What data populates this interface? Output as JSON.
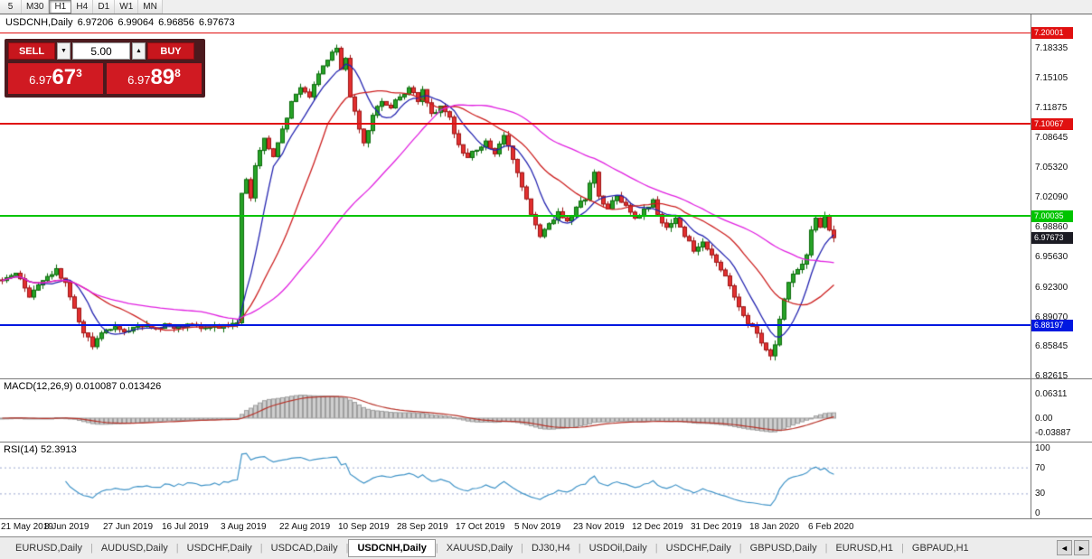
{
  "toolbar": {
    "timeframes": [
      {
        "label": "5",
        "active": false
      },
      {
        "label": "M30",
        "active": false
      },
      {
        "label": "H1",
        "active": true
      },
      {
        "label": "H4",
        "active": false
      },
      {
        "label": "D1",
        "active": false
      },
      {
        "label": "W1",
        "active": false
      },
      {
        "label": "MN",
        "active": false
      }
    ]
  },
  "chart_info": {
    "symbol": "USDCNH,Daily",
    "open": "6.97206",
    "high": "6.99064",
    "low": "6.96856",
    "close": "6.97673"
  },
  "trade_panel": {
    "sell_label": "SELL",
    "buy_label": "BUY",
    "volume": "5.00",
    "spin_up": "▲",
    "spin_down": "▼",
    "bid": {
      "prefix": "6.97",
      "big": "67",
      "sup": "3"
    },
    "ask": {
      "prefix": "6.97",
      "big": "89",
      "sup": "8"
    }
  },
  "price_axis": {
    "labels": [
      "7.18335",
      "7.15105",
      "7.11875",
      "7.08645",
      "7.05320",
      "7.02090",
      "6.98860",
      "6.95630",
      "6.92300",
      "6.89070",
      "6.85845",
      "6.82615"
    ]
  },
  "hlines": [
    {
      "value": 7.20001,
      "label": "7.20001",
      "color": "#e01010",
      "width": 1
    },
    {
      "value": 7.10067,
      "label": "7.10067",
      "color": "#e01010",
      "width": 2
    },
    {
      "value": 7.00035,
      "label": "7.00035",
      "color": "#00c400",
      "width": 2
    },
    {
      "value": 6.88197,
      "label": "6.88197",
      "color": "#0018e0",
      "width": 2
    }
  ],
  "current_price_tag": {
    "value": 6.97673,
    "label": "6.97673",
    "color": "#1c1c24"
  },
  "macd_panel": {
    "label": "MACD(12,26,9) 0.010087 0.013426",
    "axis": [
      {
        "value": 0.06311,
        "label": "0.06311"
      },
      {
        "value": 0,
        "label": "0.00"
      },
      {
        "value": -0.03887,
        "label": "-0.03887"
      }
    ]
  },
  "rsi_panel": {
    "label": "RSI(14) 52.3913",
    "axis": [
      {
        "value": 100,
        "label": "100"
      },
      {
        "value": 70,
        "label": "70"
      },
      {
        "value": 30,
        "label": "30"
      },
      {
        "value": 0,
        "label": "0"
      }
    ],
    "levels": [
      70,
      30
    ]
  },
  "date_axis": [
    {
      "label": "21 May 2019",
      "idx": 2
    },
    {
      "label": "8 Jun 2019",
      "idx": 15
    },
    {
      "label": "27 Jun 2019",
      "idx": 28
    },
    {
      "label": "16 Jul 2019",
      "idx": 41
    },
    {
      "label": "3 Aug 2019",
      "idx": 54
    },
    {
      "label": "22 Aug 2019",
      "idx": 67
    },
    {
      "label": "10 Sep 2019",
      "idx": 80
    },
    {
      "label": "28 Sep 2019",
      "idx": 93
    },
    {
      "label": "17 Oct 2019",
      "idx": 106
    },
    {
      "label": "5 Nov 2019",
      "idx": 119
    },
    {
      "label": "23 Nov 2019",
      "idx": 132
    },
    {
      "label": "12 Dec 2019",
      "idx": 145
    },
    {
      "label": "31 Dec 2019",
      "idx": 158
    },
    {
      "label": "18 Jan 2020",
      "idx": 171
    },
    {
      "label": "6 Feb 2020",
      "idx": 184
    }
  ],
  "tabs": {
    "separator": "|",
    "scroll_left": "◄",
    "scroll_right": "►",
    "items": [
      {
        "label": "EURUSD,Daily",
        "active": false
      },
      {
        "label": "AUDUSD,Daily",
        "active": false
      },
      {
        "label": "USDCHF,Daily",
        "active": false
      },
      {
        "label": "USDCAD,Daily",
        "active": false
      },
      {
        "label": "USDCNH,Daily",
        "active": true
      },
      {
        "label": "XAUUSD,Daily",
        "active": false
      },
      {
        "label": "DJ30,H4",
        "active": false
      },
      {
        "label": "USDOil,Daily",
        "active": false
      },
      {
        "label": "USDCHF,Daily",
        "active": false
      },
      {
        "label": "GBPUSD,Daily",
        "active": false
      },
      {
        "label": "EURUSD,H1",
        "active": false
      },
      {
        "label": "GBPAUD,H1",
        "active": false
      }
    ]
  },
  "chart_data": {
    "type": "candlestick",
    "symbol": "USDCNH",
    "timeframe": "Daily",
    "candle_count": 185,
    "price_scale": {
      "top": 7.2198,
      "bottom": 6.8235
    },
    "up_color": "#27a327",
    "up_border": "#0b6b0b",
    "down_color": "#e33030",
    "down_border": "#9c1414",
    "noise_seed": 42,
    "close_noise": 0.0032,
    "wick_noise": 0.0052,
    "ma": [
      {
        "period": 8,
        "color": "#2424b0"
      },
      {
        "period": 20,
        "color": "#cc2020"
      },
      {
        "period": 45,
        "color": "#e020e0"
      }
    ],
    "macd": {
      "fast": 12,
      "slow": 26,
      "signal": 9,
      "hist_color": "#cfcfcf",
      "hist_border": "#9e9e9e",
      "signal_color": "#b73228"
    },
    "rsi": {
      "period": 14,
      "color": "#3f93c7",
      "level_color": "#9aa7cf"
    },
    "close_keyframes": [
      [
        0,
        6.93
      ],
      [
        3,
        6.938
      ],
      [
        6,
        6.912
      ],
      [
        9,
        6.93
      ],
      [
        12,
        6.943
      ],
      [
        14,
        6.928
      ],
      [
        16,
        6.9
      ],
      [
        18,
        6.873
      ],
      [
        20,
        6.858
      ],
      [
        22,
        6.873
      ],
      [
        25,
        6.88
      ],
      [
        28,
        6.875
      ],
      [
        31,
        6.88
      ],
      [
        34,
        6.878
      ],
      [
        37,
        6.882
      ],
      [
        40,
        6.879
      ],
      [
        43,
        6.881
      ],
      [
        46,
        6.879
      ],
      [
        49,
        6.882
      ],
      [
        52,
        6.884
      ],
      [
        53,
        7.025
      ],
      [
        54,
        7.04
      ],
      [
        55,
        7.02
      ],
      [
        56,
        7.055
      ],
      [
        58,
        7.085
      ],
      [
        60,
        7.065
      ],
      [
        62,
        7.095
      ],
      [
        64,
        7.125
      ],
      [
        66,
        7.14
      ],
      [
        68,
        7.13
      ],
      [
        70,
        7.155
      ],
      [
        72,
        7.17
      ],
      [
        74,
        7.183
      ],
      [
        75,
        7.16
      ],
      [
        76,
        7.172
      ],
      [
        77,
        7.13
      ],
      [
        79,
        7.095
      ],
      [
        80,
        7.08
      ],
      [
        82,
        7.11
      ],
      [
        84,
        7.125
      ],
      [
        86,
        7.118
      ],
      [
        88,
        7.13
      ],
      [
        90,
        7.14
      ],
      [
        92,
        7.125
      ],
      [
        93,
        7.138
      ],
      [
        95,
        7.112
      ],
      [
        97,
        7.12
      ],
      [
        99,
        7.108
      ],
      [
        101,
        7.078
      ],
      [
        103,
        7.064
      ],
      [
        105,
        7.072
      ],
      [
        107,
        7.082
      ],
      [
        109,
        7.068
      ],
      [
        111,
        7.088
      ],
      [
        113,
        7.062
      ],
      [
        115,
        7.032
      ],
      [
        117,
        7.002
      ],
      [
        119,
        6.978
      ],
      [
        121,
        6.992
      ],
      [
        123,
        7.005
      ],
      [
        125,
        6.995
      ],
      [
        127,
        7.01
      ],
      [
        129,
        7.018
      ],
      [
        131,
        7.048
      ],
      [
        132,
        7.022
      ],
      [
        134,
        7.008
      ],
      [
        136,
        7.022
      ],
      [
        138,
        7.012
      ],
      [
        140,
        6.998
      ],
      [
        142,
        7.008
      ],
      [
        144,
        7.018
      ],
      [
        145,
        7.002
      ],
      [
        147,
        6.988
      ],
      [
        149,
        6.998
      ],
      [
        151,
        6.978
      ],
      [
        153,
        6.962
      ],
      [
        155,
        6.972
      ],
      [
        157,
        6.958
      ],
      [
        158,
        6.95
      ],
      [
        160,
        6.935
      ],
      [
        162,
        6.912
      ],
      [
        164,
        6.892
      ],
      [
        166,
        6.88
      ],
      [
        168,
        6.862
      ],
      [
        170,
        6.848
      ],
      [
        171,
        6.86
      ],
      [
        172,
        6.888
      ],
      [
        173,
        6.91
      ],
      [
        174,
        6.928
      ],
      [
        176,
        6.942
      ],
      [
        178,
        6.958
      ],
      [
        179,
        6.985
      ],
      [
        180,
        6.998
      ],
      [
        181,
        6.988
      ],
      [
        182,
        7.0
      ],
      [
        183,
        6.985
      ],
      [
        184,
        6.9767
      ]
    ]
  }
}
